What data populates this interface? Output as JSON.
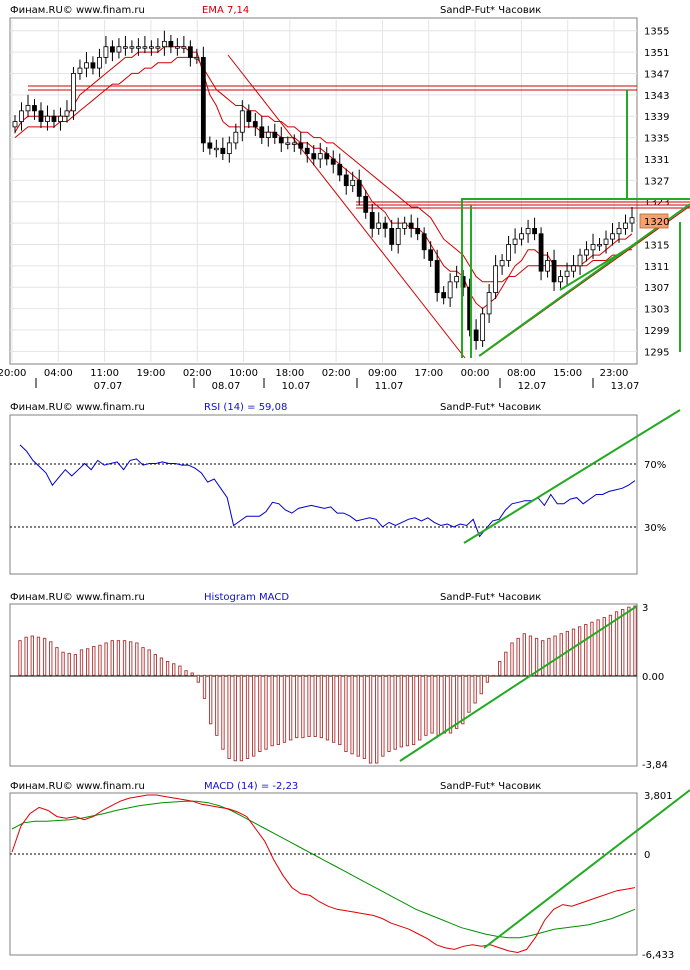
{
  "chart_data": [
    {
      "type": "candlestick",
      "header": {
        "left": "Финам.RU©  www.finam.ru",
        "indicator": "EMA 7,14",
        "instrument": "SandP-Fut* Часовик"
      },
      "ylim": [
        1293,
        1357
      ],
      "y_ticks": [
        1355,
        1351,
        1347,
        1343,
        1339,
        1335,
        1331,
        1327,
        1323,
        1319,
        1315,
        1311,
        1307,
        1303,
        1299,
        1295
      ],
      "x_time_labels": [
        "20:00",
        "04:00",
        "11:00",
        "19:00",
        "02:00",
        "10:00",
        "18:00",
        "02:00",
        "09:00",
        "17:00",
        "00:00",
        "08:00",
        "15:00",
        "23:00"
      ],
      "x_date_labels": [
        "07.07",
        "08.07",
        "10.07",
        "11.07",
        "12.07",
        "13.07"
      ],
      "last_price": "1320",
      "close": [
        1338,
        1340,
        1341,
        1340,
        1338,
        1339,
        1338,
        1339,
        1340,
        1347,
        1348,
        1349,
        1348,
        1350,
        1352,
        1351,
        1352,
        1352,
        1352,
        1352,
        1352,
        1352,
        1352,
        1353,
        1352,
        1352,
        1352,
        1350,
        1350,
        1334,
        1333,
        1333,
        1332,
        1334,
        1336,
        1340,
        1338,
        1337,
        1335,
        1336,
        1335,
        1334,
        1334,
        1334,
        1333,
        1332,
        1331,
        1332,
        1331,
        1330,
        1328,
        1326,
        1327,
        1324,
        1321,
        1318,
        1319,
        1318,
        1315,
        1318,
        1319,
        1318,
        1317,
        1314,
        1312,
        1306,
        1305,
        1308,
        1309,
        1307,
        1299,
        1297,
        1302,
        1306,
        1311,
        1312,
        1315,
        1316,
        1317,
        1318,
        1317,
        1310,
        1312,
        1308,
        1309,
        1310,
        1311,
        1313,
        1314,
        1315,
        1315,
        1316,
        1317,
        1318,
        1319,
        1320
      ],
      "ema_fast": [
        1336,
        1338,
        1339,
        1339,
        1339,
        1339,
        1339,
        1339,
        1339,
        1341,
        1343,
        1344,
        1345,
        1346,
        1347,
        1348,
        1349,
        1350,
        1350,
        1351,
        1351,
        1351,
        1351,
        1352,
        1352,
        1352,
        1352,
        1351,
        1351,
        1347,
        1343,
        1341,
        1338,
        1337,
        1337,
        1337,
        1337,
        1337,
        1336,
        1336,
        1336,
        1335,
        1335,
        1335,
        1334,
        1334,
        1333,
        1333,
        1332,
        1331,
        1330,
        1329,
        1328,
        1327,
        1325,
        1323,
        1322,
        1321,
        1319,
        1319,
        1319,
        1318,
        1318,
        1317,
        1315,
        1313,
        1311,
        1310,
        1310,
        1309,
        1306,
        1304,
        1303,
        1304,
        1305,
        1307,
        1309,
        1311,
        1312,
        1314,
        1314,
        1313,
        1313,
        1311,
        1311,
        1311,
        1311,
        1311,
        1312,
        1313,
        1313,
        1314,
        1315,
        1316,
        1316,
        1317
      ],
      "ema_slow": [
        1335,
        1336,
        1337,
        1337,
        1337,
        1337,
        1337,
        1338,
        1338,
        1339,
        1340,
        1341,
        1342,
        1343,
        1344,
        1345,
        1345,
        1346,
        1347,
        1347,
        1348,
        1348,
        1349,
        1349,
        1349,
        1350,
        1350,
        1350,
        1350,
        1348,
        1346,
        1344,
        1343,
        1342,
        1341,
        1341,
        1340,
        1340,
        1339,
        1339,
        1338,
        1338,
        1337,
        1337,
        1336,
        1336,
        1335,
        1335,
        1334,
        1334,
        1333,
        1332,
        1331,
        1330,
        1329,
        1328,
        1327,
        1326,
        1325,
        1324,
        1323,
        1322,
        1322,
        1321,
        1320,
        1318,
        1316,
        1315,
        1314,
        1313,
        1311,
        1309,
        1308,
        1308,
        1308,
        1308,
        1309,
        1309,
        1310,
        1311,
        1311,
        1311,
        1311,
        1311,
        1311,
        1311,
        1311,
        1311,
        1311,
        1312,
        1312,
        1312,
        1313,
        1313,
        1314,
        1314
      ]
    },
    {
      "type": "line",
      "header": {
        "left": "Финам.RU©  www.finam.ru",
        "indicator": "RSI (14) = 59,08",
        "instrument": "SandP-Fut* Часовик"
      },
      "ylim": [
        0,
        100
      ],
      "levels": [
        70,
        30
      ],
      "level_labels": [
        "70%",
        "30%"
      ],
      "values": [
        82,
        78,
        72,
        68,
        64,
        56,
        61,
        66,
        62,
        66,
        70,
        66,
        72,
        69,
        70,
        71,
        66,
        72,
        73,
        69,
        70,
        70,
        71,
        70,
        70,
        69,
        69,
        67,
        64,
        58,
        60,
        54,
        48,
        30,
        33,
        36,
        36,
        36,
        39,
        45,
        44,
        40,
        38,
        41,
        42,
        43,
        42,
        41,
        42,
        38,
        38,
        36,
        33,
        34,
        35,
        34,
        29,
        32,
        30,
        32,
        34,
        35,
        33,
        35,
        32,
        30,
        31,
        29,
        31,
        30,
        34,
        23,
        28,
        33,
        34,
        40,
        44,
        45,
        46,
        46,
        48,
        43,
        50,
        44,
        44,
        47,
        48,
        44,
        47,
        50,
        50,
        52,
        53,
        54,
        56,
        59
      ]
    },
    {
      "type": "bar",
      "header": {
        "left": "Финам.RU©  www.finam.ru",
        "indicator": "Histogram MACD",
        "instrument": "SandP-Fut* Часовик"
      },
      "ylim": [
        -3.84,
        3
      ],
      "y_labels": [
        "3",
        "0.00",
        "-3,84"
      ],
      "values": [
        1.5,
        1.65,
        1.7,
        1.65,
        1.6,
        1.45,
        1.2,
        1.0,
        0.95,
        0.9,
        1.1,
        1.15,
        1.25,
        1.3,
        1.4,
        1.5,
        1.5,
        1.5,
        1.45,
        1.4,
        1.2,
        1.1,
        0.9,
        0.75,
        0.6,
        0.5,
        0.4,
        0.2,
        0.1,
        -0.3,
        -1.0,
        -2.1,
        -2.6,
        -3.2,
        -3.6,
        -3.7,
        -3.7,
        -3.6,
        -3.5,
        -3.3,
        -3.2,
        -3.05,
        -3.0,
        -2.9,
        -2.8,
        -2.7,
        -2.7,
        -2.65,
        -2.65,
        -2.7,
        -2.8,
        -2.9,
        -3.0,
        -3.3,
        -3.4,
        -3.5,
        -3.6,
        -3.8,
        -3.8,
        -3.5,
        -3.3,
        -3.2,
        -3.1,
        -3.05,
        -3.0,
        -2.8,
        -2.6,
        -2.5,
        -2.6,
        -2.5,
        -2.5,
        -2.3,
        -2.1,
        -1.6,
        -1.2,
        -0.8,
        -0.3,
        0.0,
        0.6,
        1.0,
        1.4,
        1.6,
        1.8,
        1.7,
        1.6,
        1.5,
        1.6,
        1.7,
        1.8,
        1.9,
        2.0,
        2.1,
        2.2,
        2.3,
        2.4,
        2.5,
        2.6,
        2.75,
        2.85,
        2.95,
        3.0
      ]
    },
    {
      "type": "line",
      "header": {
        "left": "Финам.RU©  www.finam.ru",
        "indicator": "MACD (14) = -2,23",
        "instrument": "SandP-Fut* Часовик"
      },
      "ylim": [
        -6.433,
        3.801
      ],
      "y_labels": [
        "3,801",
        "0",
        "-6,433"
      ],
      "colors": {
        "macd": "#e00000",
        "signal": "#009000"
      },
      "macd": [
        0.1,
        1.8,
        2.6,
        3.0,
        2.8,
        2.4,
        2.3,
        2.4,
        2.2,
        2.4,
        2.8,
        3.1,
        3.4,
        3.6,
        3.7,
        3.8,
        3.8,
        3.7,
        3.6,
        3.5,
        3.4,
        3.2,
        3.1,
        3.0,
        2.9,
        2.7,
        2.4,
        1.6,
        0.8,
        -0.4,
        -1.4,
        -2.2,
        -2.6,
        -2.7,
        -3.1,
        -3.4,
        -3.6,
        -3.7,
        -3.8,
        -3.9,
        -4.0,
        -4.2,
        -4.5,
        -4.7,
        -4.9,
        -5.2,
        -5.5,
        -5.9,
        -6.1,
        -6.2,
        -6.0,
        -5.9,
        -6.0,
        -5.9,
        -6.1,
        -6.3,
        -6.4,
        -6.2,
        -5.4,
        -4.3,
        -3.6,
        -3.3,
        -3.4,
        -3.2,
        -3.0,
        -2.8,
        -2.6,
        -2.4,
        -2.3,
        -2.2
      ],
      "signal": [
        1.6,
        2.0,
        2.1,
        2.1,
        2.15,
        2.2,
        2.3,
        2.45,
        2.6,
        2.8,
        2.95,
        3.1,
        3.2,
        3.3,
        3.35,
        3.4,
        3.4,
        3.3,
        3.1,
        2.8,
        2.4,
        2.0,
        1.6,
        1.2,
        0.8,
        0.4,
        0.0,
        -0.4,
        -0.8,
        -1.2,
        -1.6,
        -2.0,
        -2.4,
        -2.8,
        -3.2,
        -3.6,
        -3.9,
        -4.2,
        -4.5,
        -4.8,
        -5.0,
        -5.2,
        -5.35,
        -5.45,
        -5.45,
        -5.3,
        -5.1,
        -4.9,
        -4.8,
        -4.7,
        -4.6,
        -4.4,
        -4.2,
        -3.9,
        -3.6
      ]
    }
  ]
}
